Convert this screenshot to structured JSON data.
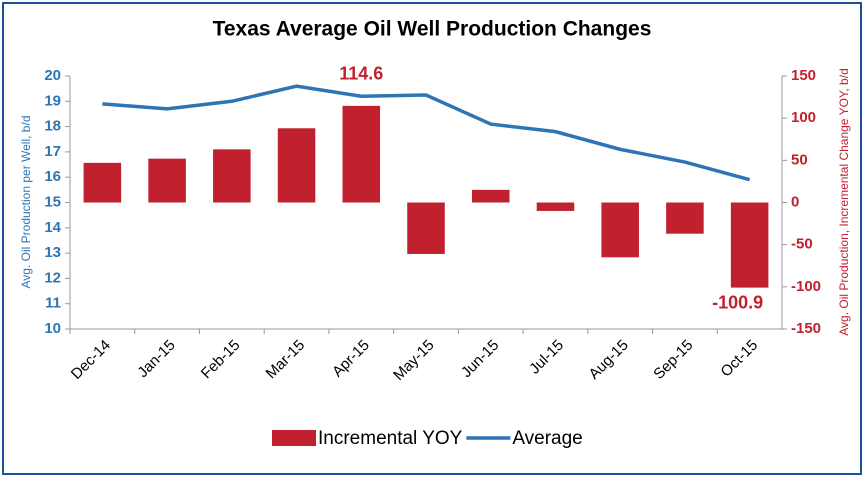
{
  "chart_data": {
    "type": "bar_line",
    "title": "Texas Average Oil Well Production Changes",
    "y_label": "Avg. Oil Production per Well, b/d",
    "y2_label": "Avg. Oil Production, Incremental Change YOY, b/d",
    "categories": [
      "Dec-14",
      "Jan-15",
      "Feb-15",
      "Mar-15",
      "Apr-15",
      "May-15",
      "Jun-15",
      "Jul-15",
      "Aug-15",
      "Sep-15",
      "Oct-15"
    ],
    "series": [
      {
        "name": "Incremental YOY",
        "type": "bar",
        "axis": "y2",
        "color": "#c1202f",
        "values": [
          47,
          52,
          63,
          88,
          114.6,
          -61,
          15,
          -10,
          -65,
          -37,
          -100.9
        ],
        "value_labels": [
          null,
          null,
          null,
          null,
          "114.6",
          null,
          null,
          null,
          null,
          null,
          "-100.9"
        ]
      },
      {
        "name": "Average",
        "type": "line",
        "axis": "y",
        "color": "#2e75b6",
        "values": [
          18.9,
          18.7,
          19.0,
          19.6,
          19.2,
          19.25,
          18.1,
          17.8,
          17.1,
          16.6,
          15.9
        ]
      }
    ],
    "ylim": [
      10,
      20
    ],
    "yticks": [
      10,
      11,
      12,
      13,
      14,
      15,
      16,
      17,
      18,
      19,
      20
    ],
    "y2lim": [
      -150,
      150
    ],
    "y2ticks": [
      -150,
      -100,
      -50,
      0,
      50,
      100,
      150
    ],
    "legend": "bottom"
  }
}
